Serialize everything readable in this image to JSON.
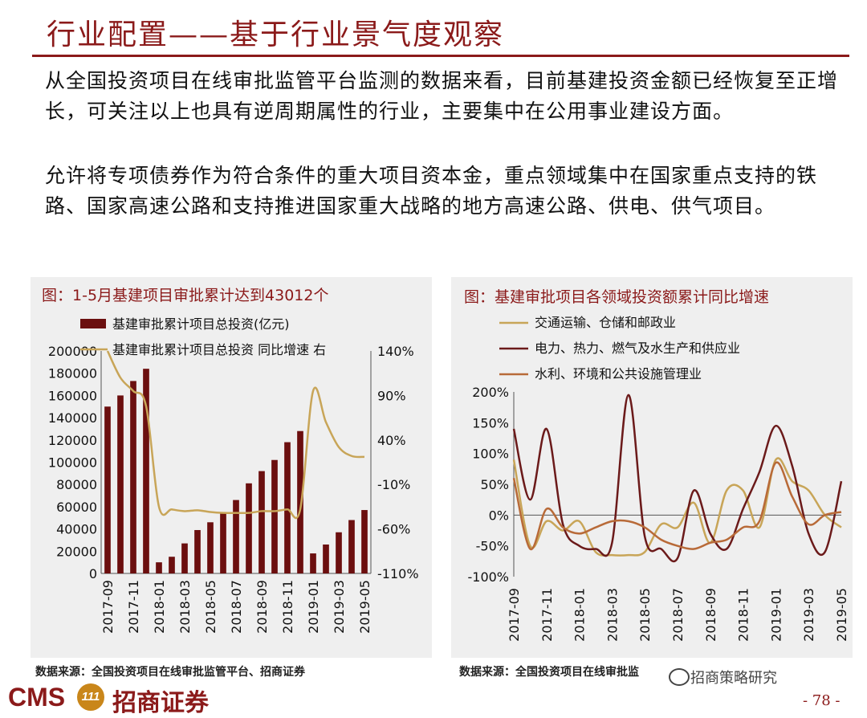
{
  "header": {
    "title": "行业配置——基于行业景气度观察"
  },
  "body": {
    "para1": "从全国投资项目在线审批监管平台监测的数据来看，目前基建投资金额已经恢复至正增长，可关注以上也具有逆周期属性的行业，主要集中在公用事业建设方面。",
    "para2": "允许将专项债券作为符合条件的重大项目资本金，重点领域集中在国家重点支持的铁路、国家高速公路和支持推进国家重大战略的地方高速公路、供电、供气项目。"
  },
  "colors": {
    "brand": "#8B1A1A",
    "bar": "#6B0F0F",
    "line_gold": "#C8A558",
    "line_dark": "#6B1A1A",
    "line_brown": "#B86A38",
    "panel_bg": "#efefef"
  },
  "chart_data": [
    {
      "type": "bar",
      "title": "图：1-5月基建项目审批累计达到43012个",
      "categories": [
        "2017-09",
        "2017-10",
        "2017-11",
        "2017-12",
        "2018-01",
        "2018-02",
        "2018-03",
        "2018-04",
        "2018-05",
        "2018-06",
        "2018-07",
        "2018-08",
        "2018-09",
        "2018-10",
        "2018-11",
        "2018-12",
        "2019-01",
        "2019-02",
        "2019-03",
        "2019-04",
        "2019-05"
      ],
      "tick_labels": [
        "2017-09",
        "2017-11",
        "2018-01",
        "2018-03",
        "2018-05",
        "2018-07",
        "2018-09",
        "2018-11",
        "2019-01",
        "2019-03",
        "2019-05"
      ],
      "series": [
        {
          "name": "基建审批累计项目总投资(亿元)",
          "kind": "bar",
          "axis": "left",
          "values": [
            150000,
            160000,
            173000,
            184000,
            10000,
            15000,
            27000,
            39000,
            46000,
            54000,
            66000,
            81000,
            92000,
            102000,
            118000,
            128000,
            18000,
            26000,
            37000,
            48000,
            57000
          ]
        },
        {
          "name": "基建审批累计项目总投资 同比增速 右",
          "kind": "line",
          "axis": "right",
          "values": [
            140,
            110,
            95,
            78,
            -35,
            -38,
            -40,
            -39,
            -41,
            -42,
            -42,
            -42,
            -40,
            -40,
            -38,
            -38,
            95,
            60,
            32,
            22,
            21
          ]
        }
      ],
      "left_ticks": [
        "200000",
        "180000",
        "160000",
        "140000",
        "120000",
        "100000",
        "80000",
        "60000",
        "40000",
        "20000",
        "0"
      ],
      "right_ticks": [
        "140%",
        "90%",
        "40%",
        "-10%",
        "-60%",
        "-110%"
      ],
      "ylim_left": [
        0,
        200000
      ],
      "ylim_right": [
        -110,
        140
      ],
      "source": "数据来源：全国投资项目在线审批监管平台、招商证券"
    },
    {
      "type": "line",
      "title": "图：基建审批项目各领域投资额累计同比增速",
      "categories": [
        "2017-09",
        "2017-10",
        "2017-11",
        "2017-12",
        "2018-01",
        "2018-02",
        "2018-03",
        "2018-04",
        "2018-05",
        "2018-06",
        "2018-07",
        "2018-08",
        "2018-09",
        "2018-10",
        "2018-11",
        "2018-12",
        "2019-01",
        "2019-02",
        "2019-03",
        "2019-04",
        "2019-05"
      ],
      "tick_labels": [
        "2017-09",
        "2017-11",
        "2018-01",
        "2018-03",
        "2018-05",
        "2018-07",
        "2018-09",
        "2018-11",
        "2019-01",
        "2019-03",
        "2019-05"
      ],
      "series": [
        {
          "name": "交通运输、仓储和邮政业",
          "values": [
            90,
            -50,
            -10,
            -25,
            -10,
            -60,
            -65,
            -65,
            -60,
            -15,
            -20,
            20,
            -45,
            40,
            40,
            -20,
            90,
            55,
            40,
            0,
            -20
          ]
        },
        {
          "name": "电力、热力、燃气及水生产和供应业",
          "values": [
            140,
            25,
            140,
            -15,
            -50,
            -55,
            -45,
            195,
            -35,
            -55,
            -70,
            40,
            -30,
            -55,
            10,
            70,
            145,
            80,
            -30,
            -60,
            55
          ]
        },
        {
          "name": "水利、环境和公共设施管理业",
          "values": [
            60,
            -55,
            10,
            -20,
            -30,
            -20,
            -10,
            -10,
            -20,
            -40,
            -50,
            -55,
            -45,
            -40,
            -20,
            -10,
            85,
            30,
            -15,
            0,
            5
          ]
        }
      ],
      "y_ticks": [
        "200%",
        "150%",
        "100%",
        "50%",
        "0%",
        "-50%",
        "-100%"
      ],
      "ylim": [
        -100,
        200
      ],
      "source": "数据来源：全国投资项目在线审批监"
    }
  ],
  "footer": {
    "logo_en": "CMS",
    "logo_mark": "111",
    "logo_cn": "招商证券",
    "watermark": "招商策略研究",
    "page_number": "- 78 -"
  }
}
